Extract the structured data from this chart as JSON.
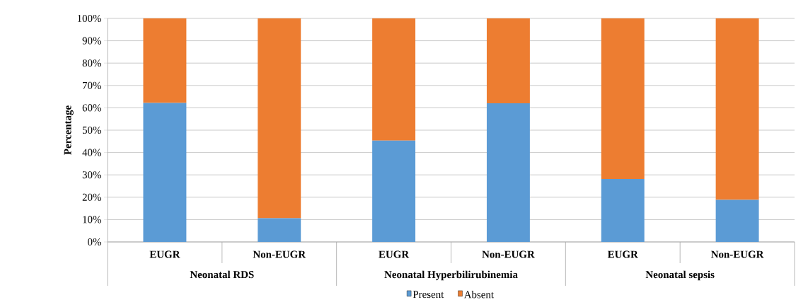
{
  "chart_data": {
    "type": "bar",
    "stacked": true,
    "ylabel": "Percentage",
    "categories": [
      "EUGR",
      "Non-EUGR",
      "EUGR",
      "Non-EUGR",
      "EUGR",
      "Non-EUGR"
    ],
    "annotations": [
      "Neonatal RDS",
      "Neonatal Hyperbilirubinemia",
      "Neonatal sepsis"
    ],
    "series": [
      {
        "name": "Present",
        "color": "#5b9bd5",
        "values": [
          62.2,
          10.6,
          45.3,
          62.0,
          28.2,
          18.8
        ]
      },
      {
        "name": "Absent",
        "color": "#ed7d31",
        "values": [
          37.8,
          89.4,
          54.7,
          38.0,
          71.8,
          81.2
        ]
      }
    ],
    "ylim": [
      0,
      100
    ],
    "yticks": [
      {
        "value": 0,
        "label": "0%"
      },
      {
        "value": 10,
        "label": "10%"
      },
      {
        "value": 20,
        "label": "20%"
      },
      {
        "value": 30,
        "label": "30%"
      },
      {
        "value": 40,
        "label": "40%"
      },
      {
        "value": 50,
        "label": "50%"
      },
      {
        "value": 60,
        "label": "60%"
      },
      {
        "value": 70,
        "label": "70%"
      },
      {
        "value": 80,
        "label": "80%"
      },
      {
        "value": 90,
        "label": "90%"
      },
      {
        "value": 100,
        "label": "100%"
      }
    ],
    "grid": "y",
    "legend": "bottom"
  }
}
